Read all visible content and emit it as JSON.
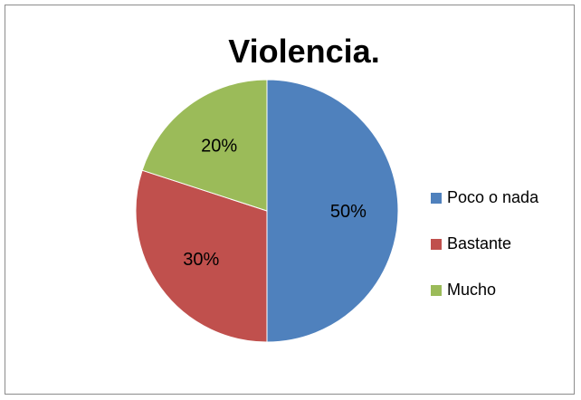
{
  "chart_data": {
    "type": "pie",
    "title": "Violencia.",
    "slices": [
      {
        "label": "Poco o nada",
        "value": 50,
        "display": "50%",
        "color": "#4f81bd"
      },
      {
        "label": "Bastante",
        "value": 30,
        "display": "30%",
        "color": "#c0504d"
      },
      {
        "label": "Mucho",
        "value": 20,
        "display": "20%",
        "color": "#9bbb59"
      }
    ],
    "legend_position": "right"
  }
}
